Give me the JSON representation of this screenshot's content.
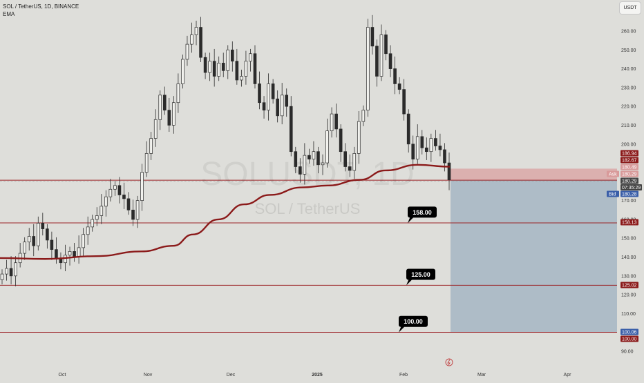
{
  "header": {
    "symbol_line": "SOL / TetherUS, 1D, BINANCE",
    "indicator": "EMA",
    "currency_badge": "USDT"
  },
  "watermark": {
    "ticker": "SOLUSDT, 1D",
    "pair": "SOL / TetherUS"
  },
  "colors": {
    "background": "#dededa",
    "candle_body": "#2b2b2b",
    "ema_line": "#8b1a1a",
    "level_line": "#9b2226",
    "target_zone": "#a8b8c4",
    "stop_zone": "#d9a0a0",
    "bid_blue": "#3a5ea8",
    "ask_red": "#b03a3a"
  },
  "price_axis": {
    "ticks": [
      "260.00",
      "250.00",
      "240.00",
      "230.00",
      "220.00",
      "210.00",
      "200.00",
      "170.00",
      "160.00",
      "150.00",
      "140.00",
      "130.00",
      "120.00",
      "110.00",
      "90.00"
    ],
    "tick_values": [
      260,
      250,
      240,
      230,
      220,
      210,
      200,
      170,
      160,
      150,
      140,
      130,
      120,
      110,
      90
    ],
    "labels": [
      {
        "text": "186.94",
        "value": 186.94,
        "color": "#8b1a1a"
      },
      {
        "text": "182.67",
        "value": 182.67,
        "color": "#8b1a1a"
      },
      {
        "text": "180.49",
        "value": 180.49,
        "color": "#d89a9a"
      },
      {
        "text": "180.29",
        "value": 180.29,
        "color": "#d89a9a",
        "tag": "Ask"
      },
      {
        "text": "180.29",
        "value": 180.29,
        "color": "#444444",
        "sub": "07:35:29"
      },
      {
        "text": "180.28",
        "value": 180.28,
        "color": "#3a5ea8",
        "tag": "Bid"
      },
      {
        "text": "158.13",
        "value": 158.13,
        "color": "#8b1a1a"
      },
      {
        "text": "125.02",
        "value": 125.02,
        "color": "#8b1a1a"
      },
      {
        "text": "100.06",
        "value": 100.06,
        "color": "#3a5ea8"
      },
      {
        "text": "100.00",
        "value": 100.0,
        "color": "#8b1a1a"
      }
    ]
  },
  "time_axis": {
    "labels": [
      "Oct",
      "Nov",
      "Dec",
      "2025",
      "Feb",
      "Mar",
      "Apr"
    ]
  },
  "annotations": [
    {
      "text": "158.00",
      "value": 158.0
    },
    {
      "text": "125.00",
      "value": 125.0
    },
    {
      "text": "100.00",
      "value": 100.0
    }
  ],
  "chart_data": {
    "type": "candlestick",
    "symbol": "SOL / TetherUS",
    "interval": "1D",
    "exchange": "BINANCE",
    "ylim": [
      88,
      270
    ],
    "horizontal_levels": [
      180.8,
      158.13,
      125.02,
      100.06
    ],
    "current_price": 180.29,
    "position": {
      "entry": 180.8,
      "stop": 186.94,
      "target": 100.06
    },
    "series": [
      {
        "name": "SOL / TetherUS",
        "type": "candlestick",
        "close_path": [
          131,
          134,
          130,
          137,
          142,
          148,
          151,
          146,
          158,
          155,
          149,
          144,
          139,
          137,
          141,
          143,
          140,
          145,
          152,
          156,
          160,
          162,
          167,
          172,
          176,
          178,
          173,
          171,
          165,
          160,
          170,
          185,
          195,
          203,
          213,
          226,
          218,
          210,
          222,
          232,
          245,
          253,
          258,
          262,
          246,
          238,
          244,
          236,
          243,
          239,
          250,
          244,
          234,
          236,
          244,
          248,
          232,
          222,
          218,
          232,
          224,
          215,
          226,
          220,
          196,
          188,
          184,
          194,
          192,
          196,
          189,
          190,
          207,
          216,
          208,
          196,
          188,
          186,
          195,
          212,
          218,
          262,
          252,
          236,
          258,
          248,
          240,
          232,
          229,
          216,
          200,
          192,
          204,
          198,
          196,
          203,
          199,
          197,
          190,
          181
        ]
      },
      {
        "name": "EMA",
        "type": "line",
        "points": [
          [
            0,
            139.5
          ],
          [
            0.07,
            139
          ],
          [
            0.15,
            140.5
          ],
          [
            0.22,
            143
          ],
          [
            0.27,
            146
          ],
          [
            0.3,
            152
          ],
          [
            0.34,
            160
          ],
          [
            0.38,
            168
          ],
          [
            0.42,
            173
          ],
          [
            0.47,
            177
          ],
          [
            0.51,
            178
          ],
          [
            0.56,
            181
          ],
          [
            0.6,
            186
          ],
          [
            0.65,
            189
          ],
          [
            0.7,
            188
          ]
        ]
      }
    ]
  }
}
